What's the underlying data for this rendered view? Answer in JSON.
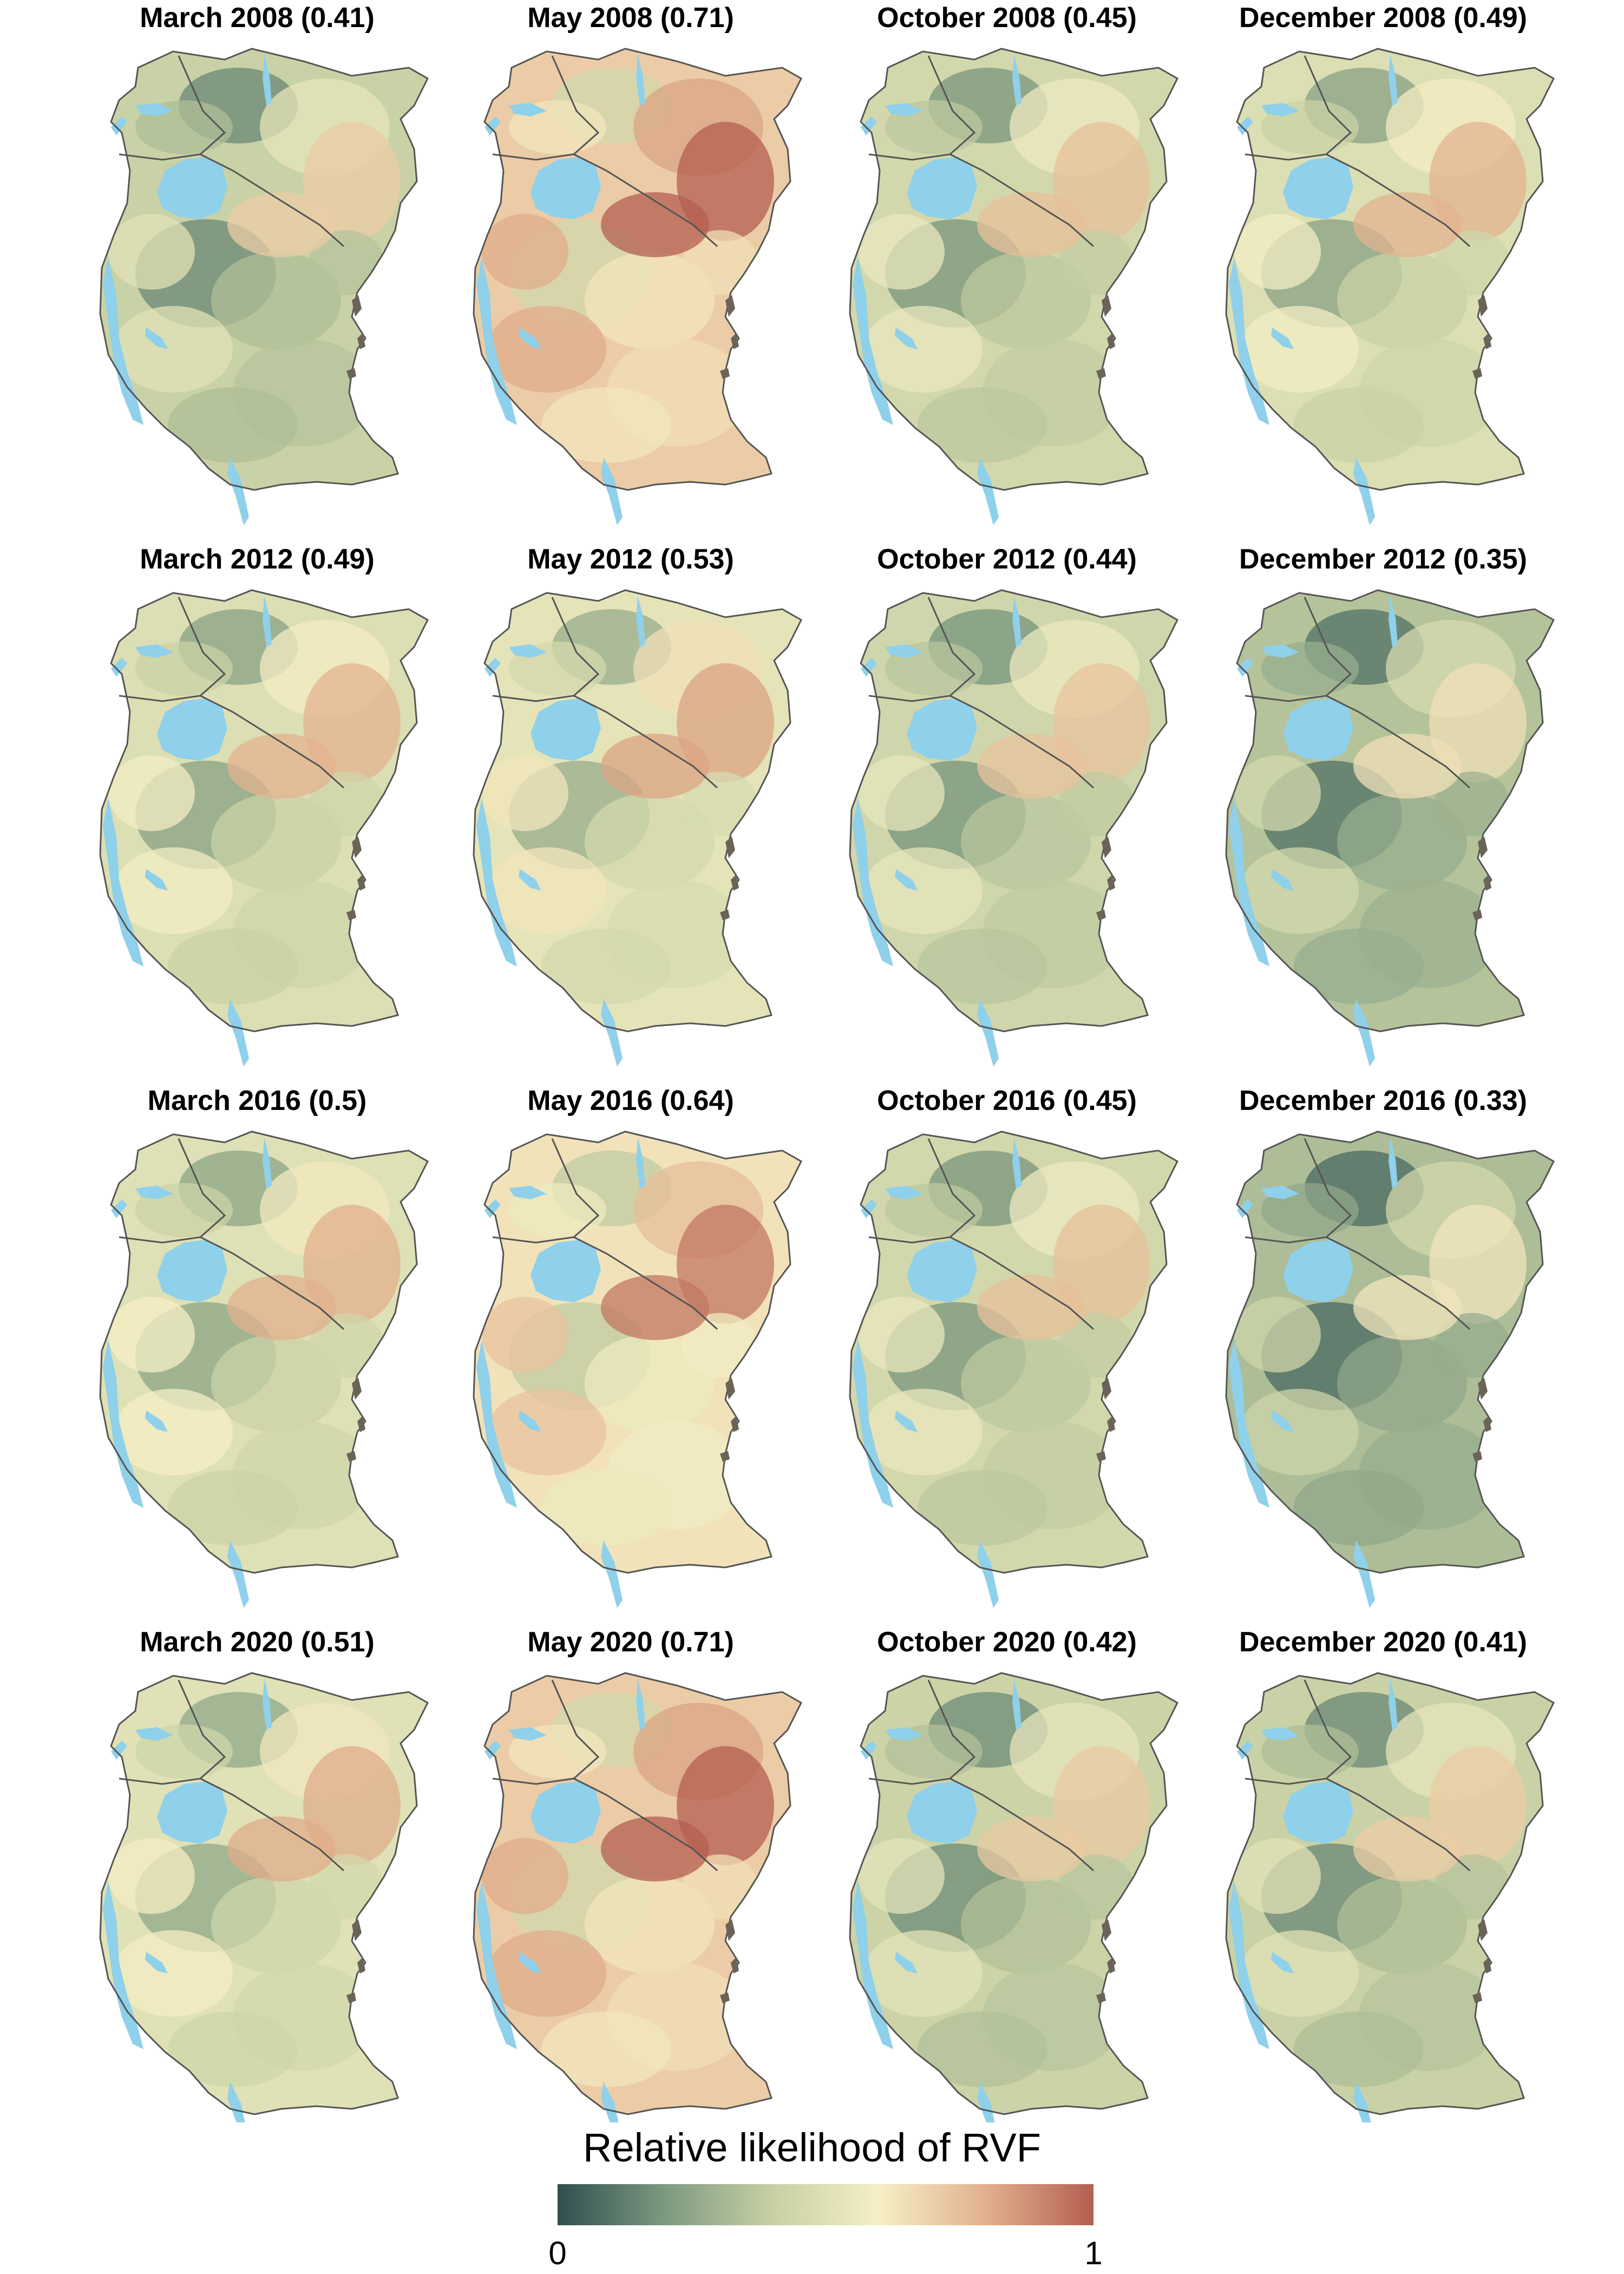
{
  "figure": {
    "panels": [
      {
        "title": "March 2008 (0.41)",
        "month": "March",
        "year": 2008,
        "mean": 0.41
      },
      {
        "title": "May 2008 (0.71)",
        "month": "May",
        "year": 2008,
        "mean": 0.71
      },
      {
        "title": "October 2008 (0.45)",
        "month": "October",
        "year": 2008,
        "mean": 0.45
      },
      {
        "title": "December 2008 (0.49)",
        "month": "December",
        "year": 2008,
        "mean": 0.49
      },
      {
        "title": "March 2012 (0.49)",
        "month": "March",
        "year": 2012,
        "mean": 0.49
      },
      {
        "title": "May 2012 (0.53)",
        "month": "May",
        "year": 2012,
        "mean": 0.53
      },
      {
        "title": "October 2012 (0.44)",
        "month": "October",
        "year": 2012,
        "mean": 0.44
      },
      {
        "title": "December 2012 (0.35)",
        "month": "December",
        "year": 2012,
        "mean": 0.35
      },
      {
        "title": "March 2016 (0.5)",
        "month": "March",
        "year": 2016,
        "mean": 0.5
      },
      {
        "title": "May 2016 (0.64)",
        "month": "May",
        "year": 2016,
        "mean": 0.64
      },
      {
        "title": "October 2016 (0.45)",
        "month": "October",
        "year": 2016,
        "mean": 0.45
      },
      {
        "title": "December 2016 (0.33)",
        "month": "December",
        "year": 2016,
        "mean": 0.33
      },
      {
        "title": "March 2020 (0.51)",
        "month": "March",
        "year": 2020,
        "mean": 0.51
      },
      {
        "title": "May 2020 (0.71)",
        "month": "May",
        "year": 2020,
        "mean": 0.71
      },
      {
        "title": "October 2020 (0.42)",
        "month": "October",
        "year": 2020,
        "mean": 0.42
      },
      {
        "title": "December 2020 (0.41)",
        "month": "December",
        "year": 2020,
        "mean": 0.41
      }
    ]
  },
  "legend": {
    "title": "Relative likelihood of RVF",
    "min_label": "0",
    "max_label": "1",
    "colors": [
      "#2f4f4f",
      "#7d9a80",
      "#c7d0a4",
      "#f5efc5",
      "#e2b08c",
      "#b45f50"
    ]
  },
  "colors": {
    "water": "#8fd0ea",
    "border": "#555555",
    "island": "#6b6358"
  }
}
